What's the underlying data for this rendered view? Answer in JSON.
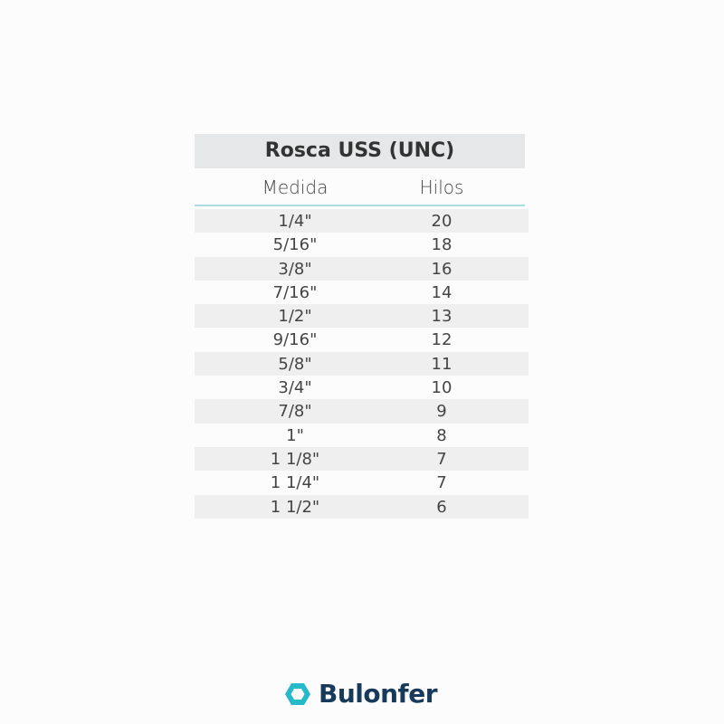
{
  "title": "Rosca USS (UNC)",
  "columns": [
    "Medida",
    "Hilos"
  ],
  "rows": [
    [
      "1/4\"",
      "20"
    ],
    [
      "5/16\"",
      "18"
    ],
    [
      "3/8\"",
      "16"
    ],
    [
      "7/16\"",
      "14"
    ],
    [
      "1/2\"",
      "13"
    ],
    [
      "9/16\"",
      "12"
    ],
    [
      "5/8\"",
      "11"
    ],
    [
      "3/4\"",
      "10"
    ],
    [
      "7/8\"",
      "9"
    ],
    [
      "1\"",
      "8"
    ],
    [
      "1 1/8\"",
      "7"
    ],
    [
      "1 1/4\"",
      "7"
    ],
    [
      "1 1/2\"",
      "6"
    ]
  ],
  "brand": {
    "name": "Bulonfer",
    "icon": "hexagon-icon",
    "icon_color": "#25b9c9",
    "text_color": "#173a5a"
  }
}
